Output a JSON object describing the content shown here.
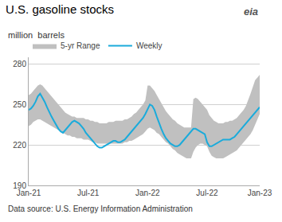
{
  "chart_data": {
    "type": "line",
    "title": "U.S. gasoline stocks",
    "subtitle": "million  barrels",
    "annotations": [
      "Data source: U.S. Energy Information Administration",
      "eia"
    ],
    "categories": [
      "Jan-21",
      null,
      null,
      null,
      null,
      null,
      null,
      null,
      null,
      null,
      null,
      null,
      null,
      null,
      null,
      null,
      null,
      null,
      null,
      null,
      null,
      null,
      null,
      null,
      null,
      null,
      "Jul-21",
      null,
      null,
      null,
      null,
      null,
      null,
      null,
      null,
      null,
      null,
      null,
      null,
      null,
      null,
      null,
      null,
      null,
      null,
      null,
      null,
      null,
      null,
      null,
      null,
      null,
      "Jan-22",
      null,
      null,
      null,
      null,
      null,
      null,
      null,
      null,
      null,
      null,
      null,
      null,
      null,
      null,
      null,
      null,
      null,
      null,
      null,
      null,
      null,
      null,
      null,
      null,
      null,
      "Jul-22",
      null,
      null,
      null,
      null,
      null,
      null,
      null,
      null,
      null,
      null,
      null,
      null,
      null,
      null,
      null,
      null,
      null,
      null,
      null,
      null,
      null,
      null,
      "Jan-23"
    ],
    "series": [
      {
        "name": "5-yr Range",
        "type": "area",
        "color": "#c0c0c0",
        "upper": [
          257,
          258,
          260,
          262,
          264,
          265,
          264,
          262,
          260,
          258,
          256,
          254,
          252,
          250,
          248,
          246,
          244,
          243,
          242,
          241,
          241,
          240,
          240,
          240,
          240,
          239,
          239,
          238,
          238,
          237,
          237,
          236,
          236,
          236,
          236,
          237,
          237,
          237,
          238,
          238,
          238,
          238,
          239,
          239,
          240,
          241,
          243,
          244,
          246,
          248,
          250,
          253,
          264,
          264,
          262,
          260,
          257,
          254,
          251,
          248,
          245,
          243,
          241,
          239,
          238,
          236,
          235,
          234,
          233,
          233,
          233,
          233,
          254,
          255,
          254,
          252,
          250,
          248,
          246,
          242,
          240,
          238,
          237,
          236,
          236,
          236,
          237,
          237,
          238,
          238,
          239,
          240,
          242,
          244,
          246,
          249,
          253,
          258,
          263,
          268,
          270,
          272
        ],
        "lower": [
          234,
          235,
          237,
          238,
          239,
          239,
          238,
          237,
          236,
          235,
          234,
          233,
          232,
          231,
          230,
          229,
          228,
          227,
          227,
          226,
          226,
          225,
          225,
          225,
          224,
          224,
          224,
          223,
          222,
          222,
          221,
          221,
          221,
          221,
          221,
          221,
          221,
          221,
          221,
          221,
          221,
          221,
          222,
          222,
          223,
          223,
          224,
          225,
          226,
          227,
          228,
          230,
          232,
          233,
          232,
          231,
          229,
          228,
          226,
          224,
          222,
          221,
          219,
          217,
          216,
          214,
          213,
          212,
          211,
          210,
          210,
          210,
          215,
          218,
          220,
          221,
          221,
          220,
          219,
          215,
          212,
          211,
          210,
          210,
          210,
          210,
          211,
          212,
          213,
          214,
          215,
          216,
          218,
          220,
          222,
          224,
          226,
          228,
          231,
          235,
          239,
          243
        ]
      },
      {
        "name": "Weekly",
        "type": "line",
        "color": "#1aabdb",
        "values": [
          246,
          247,
          249,
          252,
          256,
          258,
          255,
          252,
          248,
          244,
          241,
          238,
          235,
          232,
          230,
          229,
          231,
          233,
          235,
          237,
          238,
          237,
          236,
          234,
          232,
          229,
          227,
          225,
          223,
          221,
          219,
          218,
          218,
          219,
          220,
          221,
          222,
          223,
          223,
          222,
          222,
          223,
          224,
          226,
          228,
          230,
          232,
          234,
          236,
          238,
          240,
          243,
          247,
          250,
          249,
          246,
          241,
          236,
          232,
          228,
          225,
          223,
          221,
          220,
          219,
          219,
          220,
          222,
          224,
          226,
          228,
          230,
          232,
          232,
          231,
          230,
          229,
          228,
          222,
          219,
          219,
          220,
          221,
          222,
          223,
          224,
          224,
          224,
          224,
          225,
          226,
          228,
          230,
          232,
          234,
          236,
          238,
          240,
          242,
          244,
          246,
          248
        ]
      }
    ],
    "ylim": [
      190,
      285
    ],
    "yticks": [
      190,
      220,
      250,
      280
    ],
    "grid": "y",
    "legend": "upper left"
  }
}
